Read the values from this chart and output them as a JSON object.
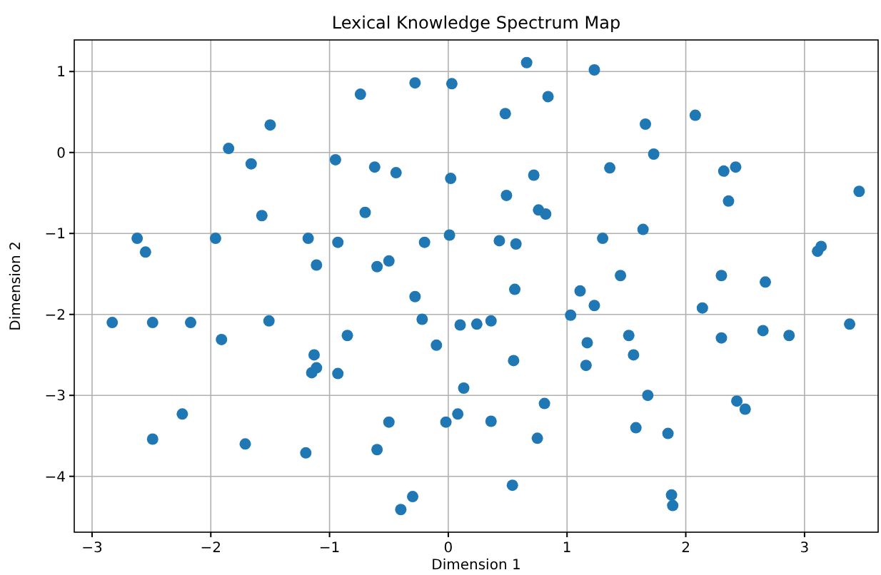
{
  "chart_data": {
    "type": "scatter",
    "title": "Lexical Knowledge Spectrum Map",
    "xlabel": "Dimension 1",
    "ylabel": "Dimension 2",
    "xlim": [
      -3.15,
      3.62
    ],
    "ylim": [
      -4.69,
      1.39
    ],
    "xticks": [
      {
        "value": -3,
        "label": "−3"
      },
      {
        "value": -2,
        "label": "−2"
      },
      {
        "value": -1,
        "label": "−1"
      },
      0,
      1,
      2,
      3
    ],
    "yticks": [
      {
        "value": -4,
        "label": "−4"
      },
      {
        "value": -3,
        "label": "−3"
      },
      {
        "value": -2,
        "label": "−2"
      },
      {
        "value": -1,
        "label": "−1"
      },
      0,
      1
    ],
    "grid": true,
    "marker": "circle",
    "series": [
      {
        "color": "#1f77b4",
        "x": [
          -2.83,
          -2.62,
          -2.55,
          -2.49,
          -2.49,
          -2.24,
          -2.17,
          -1.96,
          -1.91,
          -1.85,
          -1.71,
          -1.66,
          -1.57,
          -1.51,
          -1.5,
          -1.18,
          -1.2,
          -1.15,
          -1.13,
          -1.11,
          -1.11,
          -0.95,
          -0.93,
          -0.93,
          -0.85,
          -0.74,
          -0.7,
          -0.6,
          -0.62,
          -0.6,
          -0.5,
          -0.5,
          -0.44,
          -0.4,
          -0.3,
          -0.28,
          -0.28,
          -0.22,
          -0.2,
          -0.1,
          0.03,
          0.02,
          0.01,
          -0.02,
          0.1,
          0.13,
          0.08,
          0.24,
          0.36,
          0.36,
          0.43,
          0.48,
          0.49,
          0.54,
          0.55,
          0.56,
          0.57,
          0.66,
          0.72,
          0.75,
          0.76,
          0.82,
          0.84,
          0.81,
          1.03,
          1.11,
          1.23,
          1.23,
          1.17,
          1.16,
          1.3,
          1.36,
          1.45,
          1.52,
          1.56,
          1.64,
          1.66,
          1.58,
          1.68,
          1.73,
          1.85,
          1.88,
          1.89,
          2.08,
          2.14,
          2.3,
          2.3,
          2.32,
          2.42,
          2.36,
          2.43,
          2.5,
          2.67,
          2.65,
          2.87,
          3.11,
          3.14,
          3.38,
          3.46
        ],
        "values": [
          -2.1,
          -1.06,
          -1.23,
          -2.1,
          -3.54,
          -3.23,
          -2.1,
          -1.06,
          -2.31,
          0.05,
          -3.6,
          -0.14,
          -0.78,
          -2.08,
          0.34,
          -1.06,
          -3.71,
          -2.72,
          -2.5,
          -2.66,
          -1.39,
          -0.09,
          -1.11,
          -2.73,
          -2.26,
          0.72,
          -0.74,
          -1.41,
          -0.18,
          -3.67,
          -1.34,
          -3.33,
          -0.25,
          -4.41,
          -4.25,
          -1.78,
          0.86,
          -2.06,
          -1.11,
          -2.38,
          0.85,
          -0.32,
          -1.02,
          -3.33,
          -2.13,
          -2.91,
          -3.23,
          -2.12,
          -2.08,
          -3.32,
          -1.09,
          0.48,
          -0.53,
          -4.11,
          -2.57,
          -1.69,
          -1.13,
          1.11,
          -0.28,
          -3.53,
          -0.71,
          -0.76,
          0.69,
          -3.1,
          -2.01,
          -1.71,
          -1.89,
          1.02,
          -2.35,
          -2.63,
          -1.06,
          -0.19,
          -1.52,
          -2.26,
          -2.5,
          -0.95,
          0.35,
          -3.4,
          -3.0,
          -0.02,
          -3.47,
          -4.23,
          -4.36,
          0.46,
          -1.92,
          -1.52,
          -2.29,
          -0.23,
          -0.18,
          -0.6,
          -3.07,
          -3.17,
          -1.6,
          -2.2,
          -2.26,
          -1.22,
          -1.16,
          -2.12,
          -0.48
        ]
      }
    ]
  }
}
